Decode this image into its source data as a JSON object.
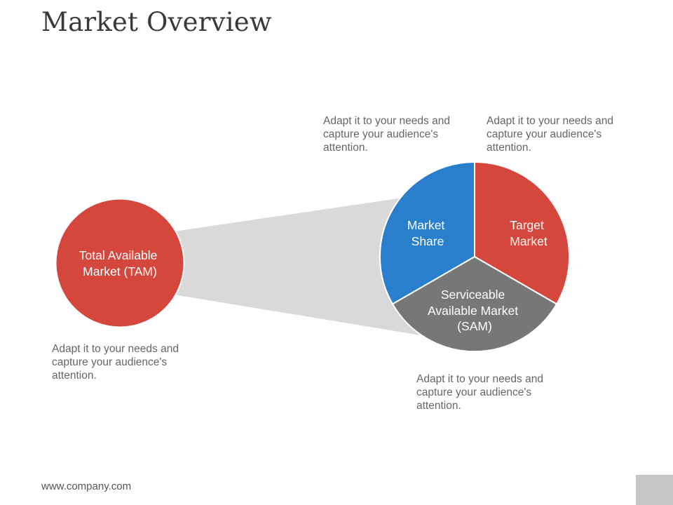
{
  "title": "Market Overview",
  "segments": {
    "tam": {
      "label_lines": [
        "Total Available",
        "Market (TAM)"
      ],
      "color": "#d5473d"
    },
    "market_share": {
      "label_lines": [
        "Market",
        "Share"
      ],
      "color": "#2a7fcc"
    },
    "target_market": {
      "label_lines": [
        "Target",
        "Market"
      ],
      "color": "#d5473d"
    },
    "sam": {
      "label_lines": [
        "Serviceable",
        "Available Market",
        "(SAM)"
      ],
      "color": "#777777"
    }
  },
  "funnel_color": "#d9d9d9",
  "captions": {
    "tam": "Adapt it to your needs and capture your audience's attention.",
    "market_share": "Adapt it to your needs and capture your audience's attention.",
    "target_market": "Adapt it to your needs and capture your audience's attention.",
    "sam": "Adapt it to your needs and capture your audience's attention."
  },
  "footer": "www.company.com"
}
